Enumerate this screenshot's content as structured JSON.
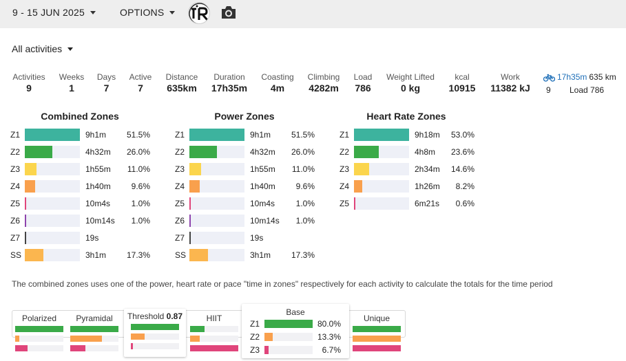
{
  "colors": {
    "z1": "#3db39e",
    "z2": "#3aaa48",
    "z3": "#fbd54d",
    "z4": "#f9a04d",
    "z5": "#e0457b",
    "z6": "#8e44ad",
    "z7": "#444444",
    "ss": "#fbb64f",
    "link": "#1e6fb8"
  },
  "topbar": {
    "date_range": "9 - 15 JUN 2025",
    "options": "OPTIONS",
    "avatar_icon": "athlete-avatar",
    "camera_icon": "camera-icon"
  },
  "filter": {
    "label": "All activities"
  },
  "stats": [
    {
      "label": "Activities",
      "value": "9"
    },
    {
      "label": "Weeks",
      "value": "1"
    },
    {
      "label": "Days",
      "value": "7"
    },
    {
      "label": "Active",
      "value": "7"
    },
    {
      "label": "Distance",
      "value": "635km"
    },
    {
      "label": "Duration",
      "value": "17h35m"
    },
    {
      "label": "Coasting",
      "value": "4m"
    },
    {
      "label": "Climbing",
      "value": "4282m"
    },
    {
      "label": "Load",
      "value": "786"
    },
    {
      "label": "Weight Lifted",
      "value": "0 kg"
    },
    {
      "label": "kcal",
      "value": "10915"
    },
    {
      "label": "Work",
      "value": "11382 kJ"
    }
  ],
  "ride": {
    "icon": "bike-icon",
    "duration": "17h35m",
    "distance": "635 km",
    "count": "9",
    "load": "Load 786"
  },
  "zones": [
    {
      "title": "Combined Zones",
      "rows": [
        {
          "zone": "Z1",
          "time": "9h1m",
          "pct": "51.5%",
          "frac": 1.0,
          "color": "#3db39e"
        },
        {
          "zone": "Z2",
          "time": "4h32m",
          "pct": "26.0%",
          "frac": 0.505,
          "color": "#3aaa48"
        },
        {
          "zone": "Z3",
          "time": "1h55m",
          "pct": "11.0%",
          "frac": 0.214,
          "color": "#fbd54d"
        },
        {
          "zone": "Z4",
          "time": "1h40m",
          "pct": "9.6%",
          "frac": 0.186,
          "color": "#f9a04d"
        },
        {
          "zone": "Z5",
          "time": "10m4s",
          "pct": "1.0%",
          "frac": 0.025,
          "color": "#e0457b"
        },
        {
          "zone": "Z6",
          "time": "10m14s",
          "pct": "1.0%",
          "frac": 0.025,
          "color": "#8e44ad"
        },
        {
          "zone": "Z7",
          "time": "19s",
          "pct": "",
          "frac": 0.012,
          "color": "#444444"
        },
        {
          "zone": "SS",
          "time": "3h1m",
          "pct": "17.3%",
          "frac": 0.336,
          "color": "#fbb64f"
        }
      ]
    },
    {
      "title": "Power Zones",
      "rows": [
        {
          "zone": "Z1",
          "time": "9h1m",
          "pct": "51.5%",
          "frac": 1.0,
          "color": "#3db39e"
        },
        {
          "zone": "Z2",
          "time": "4h32m",
          "pct": "26.0%",
          "frac": 0.505,
          "color": "#3aaa48"
        },
        {
          "zone": "Z3",
          "time": "1h55m",
          "pct": "11.0%",
          "frac": 0.214,
          "color": "#fbd54d"
        },
        {
          "zone": "Z4",
          "time": "1h40m",
          "pct": "9.6%",
          "frac": 0.186,
          "color": "#f9a04d"
        },
        {
          "zone": "Z5",
          "time": "10m4s",
          "pct": "1.0%",
          "frac": 0.02,
          "color": "#e0457b"
        },
        {
          "zone": "Z6",
          "time": "10m14s",
          "pct": "1.0%",
          "frac": 0.02,
          "color": "#8e44ad"
        },
        {
          "zone": "Z7",
          "time": "19s",
          "pct": "",
          "frac": 0.01,
          "color": "#444444"
        },
        {
          "zone": "SS",
          "time": "3h1m",
          "pct": "17.3%",
          "frac": 0.336,
          "color": "#fbb64f"
        }
      ]
    },
    {
      "title": "Heart Rate Zones",
      "rows": [
        {
          "zone": "Z1",
          "time": "9h18m",
          "pct": "53.0%",
          "frac": 1.0,
          "color": "#3db39e"
        },
        {
          "zone": "Z2",
          "time": "4h8m",
          "pct": "23.6%",
          "frac": 0.445,
          "color": "#3aaa48"
        },
        {
          "zone": "Z3",
          "time": "2h34m",
          "pct": "14.6%",
          "frac": 0.275,
          "color": "#fbd54d"
        },
        {
          "zone": "Z4",
          "time": "1h26m",
          "pct": "8.2%",
          "frac": 0.155,
          "color": "#f9a04d"
        },
        {
          "zone": "Z5",
          "time": "6m21s",
          "pct": "0.6%",
          "frac": 0.012,
          "color": "#e0457b"
        }
      ]
    }
  ],
  "note": "The combined zones uses one of the power, heart rate or pace \"time in zones\" respectively for each activity to calculate the totals for the time period",
  "models": [
    {
      "name": "Polarized",
      "bars": [
        1.0,
        0.08,
        0.25
      ]
    },
    {
      "name": "Pyramidal",
      "bars": [
        1.0,
        0.65,
        0.32
      ]
    },
    {
      "name": "Threshold",
      "value": "0.87",
      "bars": [
        1.0,
        0.28,
        0.04
      ]
    },
    {
      "name": "HIIT",
      "bars": [
        0.3,
        0.2,
        1.0
      ]
    },
    {
      "name": "Base",
      "rows": [
        {
          "zone": "Z1",
          "pct": "80.0%",
          "frac": 1.0
        },
        {
          "zone": "Z2",
          "pct": "13.3%",
          "frac": 0.166
        },
        {
          "zone": "Z3",
          "pct": "6.7%",
          "frac": 0.084
        }
      ]
    },
    {
      "name": "Unique",
      "bars": [
        1.0,
        1.0,
        1.0
      ]
    }
  ]
}
